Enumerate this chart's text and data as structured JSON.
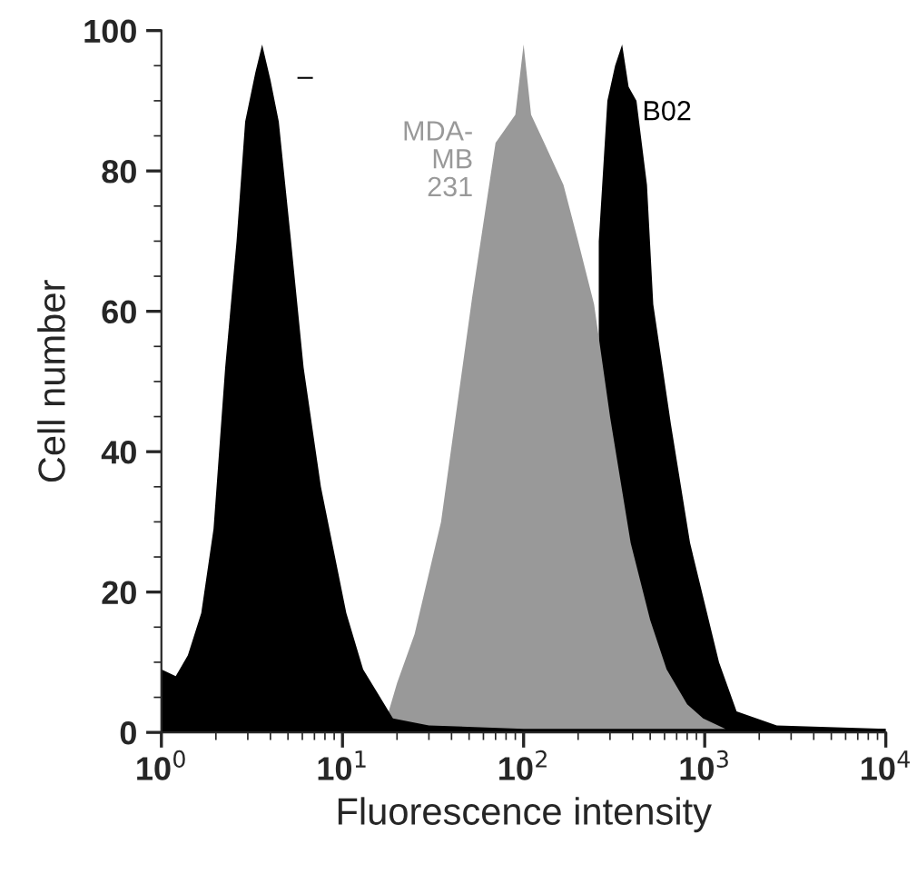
{
  "chart_data": {
    "type": "area",
    "xlabel": "Fluorescence intensity",
    "ylabel": "Cell number",
    "log": "x",
    "grid": false,
    "legend": false,
    "xlim": [
      1,
      10000
    ],
    "ylim": [
      0,
      100
    ],
    "xticks": [
      {
        "value": 1,
        "label": "10$^{0}$"
      },
      {
        "value": 10,
        "label": "10$^{1}$"
      },
      {
        "value": 100,
        "label": "10$^{2}$"
      },
      {
        "value": 1000,
        "label": "10$^{3}$"
      },
      {
        "value": 10000,
        "label": "10$^{4}$"
      }
    ],
    "yticks": [
      0,
      20,
      40,
      60,
      80,
      100
    ],
    "series": [
      {
        "name": "B02",
        "color": "#000000",
        "x": [
          260,
          290,
          320,
          350,
          380,
          420,
          480,
          520,
          650,
          830,
          1200,
          1500,
          2500,
          10000
        ],
        "values": [
          70,
          90,
          95,
          98,
          92,
          90,
          78,
          61,
          44,
          27,
          10,
          3,
          1,
          0.5
        ]
      },
      {
        "name": "MDA-\nMB\n231",
        "color": "#999999",
        "x": [
          18,
          20,
          25,
          35,
          52,
          70,
          90,
          100,
          110,
          130,
          166,
          200,
          245,
          300,
          390,
          500,
          616,
          800,
          980,
          1300
        ],
        "values": [
          3,
          7,
          14,
          30,
          62,
          84,
          88,
          98,
          88,
          84,
          78,
          70,
          61,
          45,
          27,
          16,
          9,
          4,
          2,
          0.5
        ]
      },
      {
        "name": "–",
        "color": "#000000",
        "x": [
          1,
          1.2,
          1.4,
          1.66,
          1.94,
          2.25,
          2.6,
          2.9,
          3.3,
          3.6,
          4.0,
          4.45,
          5.2,
          6.1,
          7.6,
          10.5,
          13,
          19,
          30,
          100,
          1000,
          10000
        ],
        "values": [
          9,
          8,
          11,
          17,
          29,
          52,
          70,
          87,
          94,
          98,
          93,
          87,
          70,
          52,
          35,
          17,
          9,
          2,
          1,
          0.5,
          0.5,
          0.5
        ]
      }
    ]
  }
}
